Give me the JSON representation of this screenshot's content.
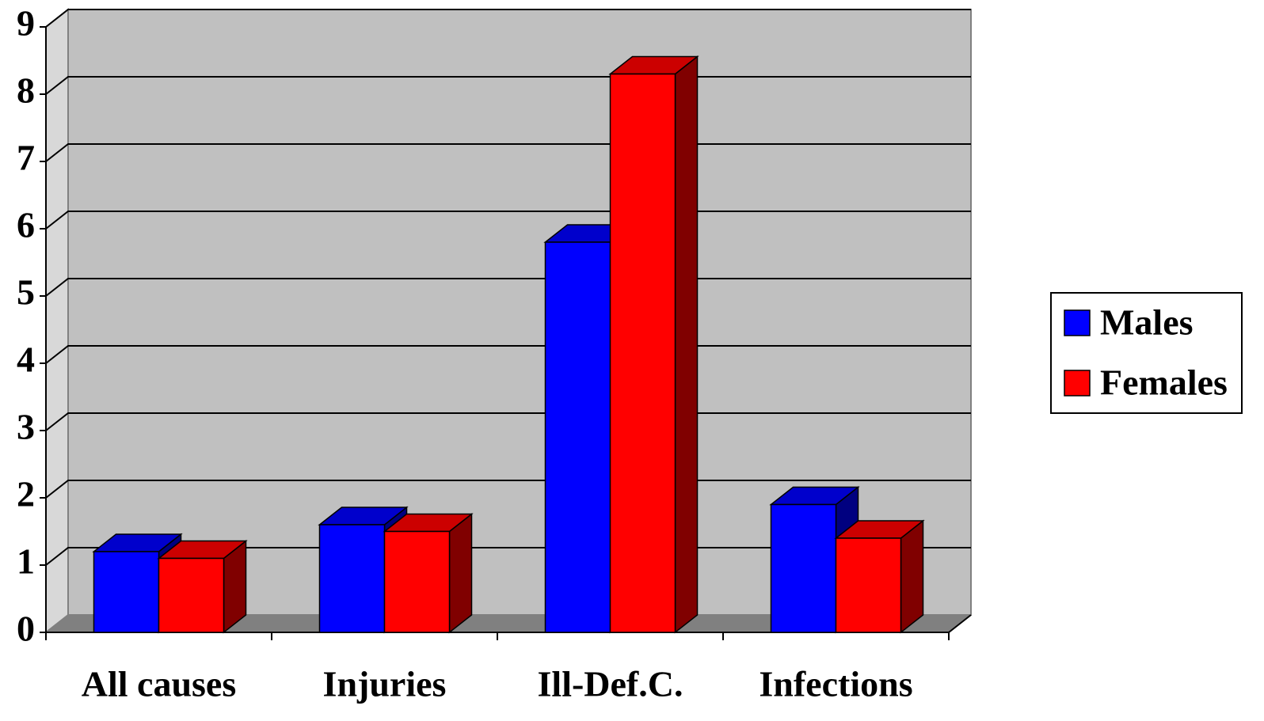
{
  "chart_data": {
    "type": "bar3d",
    "categories": [
      "All causes",
      "Injuries",
      "Ill-Def.C.",
      "Infections"
    ],
    "series": [
      {
        "name": "Males",
        "color": "#0000ff",
        "values": [
          1.2,
          1.6,
          5.8,
          1.9
        ]
      },
      {
        "name": "Females",
        "color": "#ff0000",
        "values": [
          1.1,
          1.5,
          8.3,
          1.4
        ]
      }
    ],
    "ylim": [
      0,
      9
    ],
    "yticks": [
      0,
      1,
      2,
      3,
      4,
      5,
      6,
      7,
      8,
      9
    ],
    "grid": true,
    "legend": "right"
  }
}
